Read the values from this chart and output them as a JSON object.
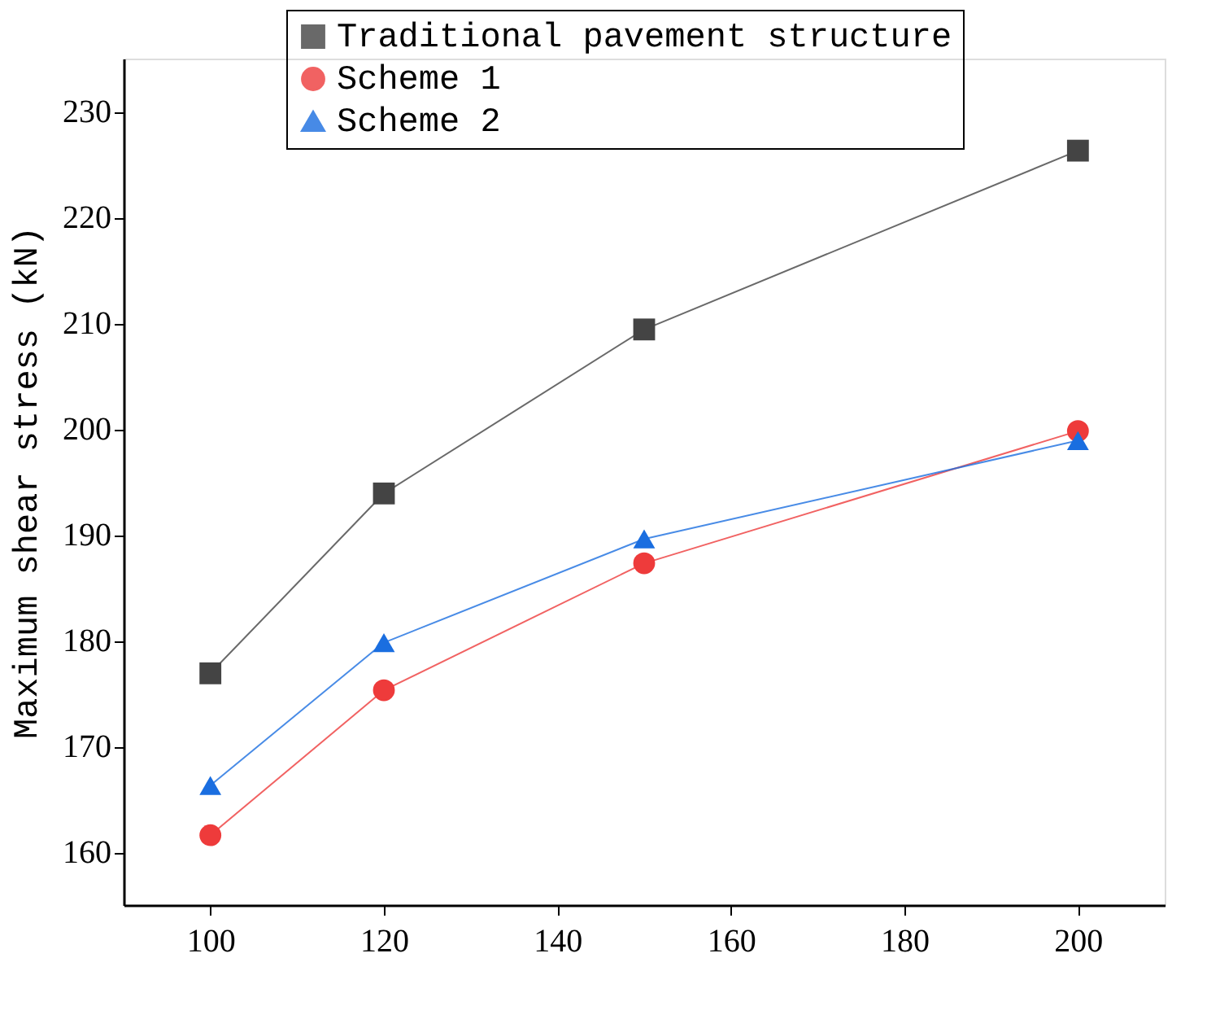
{
  "chart_data": {
    "type": "line",
    "ylabel": "Maximum shear stress (kN)",
    "x": [
      100,
      120,
      150,
      200
    ],
    "series": [
      {
        "name": "Traditional pavement structure",
        "color": "#444444",
        "marker": "square",
        "values": [
          176.9,
          193.9,
          209.4,
          226.3
        ]
      },
      {
        "name": "Scheme 1",
        "color": "#ee3b3b",
        "marker": "circle",
        "values": [
          161.6,
          175.3,
          187.3,
          199.8
        ]
      },
      {
        "name": "Scheme 2",
        "color": "#1a6ee0",
        "marker": "triangle",
        "values": [
          166.3,
          179.8,
          189.6,
          198.9
        ]
      }
    ],
    "xlim": [
      90,
      210
    ],
    "xticks": [
      100,
      120,
      140,
      160,
      180,
      200
    ],
    "ylim": [
      155,
      235
    ],
    "yticks": [
      160,
      170,
      180,
      190,
      200,
      210,
      220,
      230
    ],
    "grid": false,
    "legend": "top",
    "line_style": "solid"
  }
}
